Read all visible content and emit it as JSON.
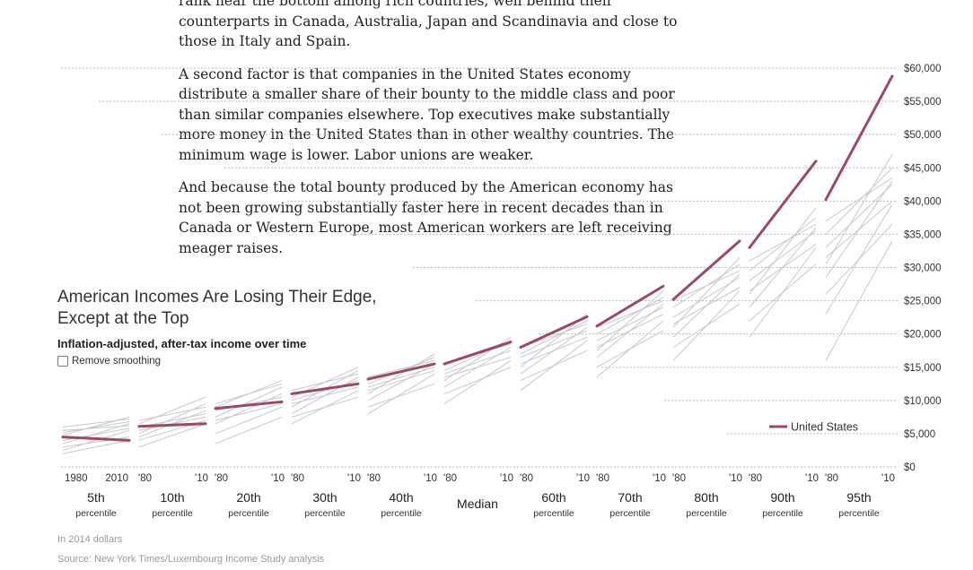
{
  "article": {
    "paragraphs": [
      "rank near the bottom among rich countries, well behind their counterparts in Canada, Australia, Japan and Scandinavia and close to those in Italy and Spain.",
      "A second factor is that companies in the United States economy distribute a smaller share of their bounty to the middle class and poor than similar companies elsewhere. Top executives make substantially more money in the United States than in other wealthy countries. The minimum wage is lower. Labor unions are weaker.",
      "And because the total bounty produced by the American economy has not been growing substantially faster here in recent decades than in Canada or Western Europe, most American workers are left receiving meager raises."
    ]
  },
  "chart": {
    "title_line1": "American Incomes Are Losing Their Edge,",
    "title_line2": "Except at the Top",
    "subtitle": "Inflation-adjusted, after-tax income over time",
    "checkbox_label": "Remove smoothing",
    "footnote_units": "In 2014 dollars",
    "footnote_source": "Source: New York Times/Luxembourg Income Study analysis"
  },
  "chart_data": {
    "type": "line",
    "ylim": [
      0,
      60000
    ],
    "y_ticks": [
      "$0",
      "$5,000",
      "$10,000",
      "$15,000",
      "$20,000",
      "$25,000",
      "$30,000",
      "$35,000",
      "$40,000",
      "$45,000",
      "$50,000",
      "$55,000",
      "$60,000"
    ],
    "legend": "United States",
    "legend_position": "bottom-right",
    "us_color": "#9b4a64",
    "other_color": "#c8c8c8",
    "panels": [
      {
        "name": "5th",
        "sub": "percentile",
        "x_start": "1980",
        "x_end": "2010",
        "us": [
          4500,
          4000
        ],
        "others": [
          [
            3500,
            6500
          ],
          [
            4800,
            7500
          ],
          [
            5200,
            6800
          ],
          [
            2500,
            5500
          ],
          [
            6000,
            7200
          ],
          [
            3000,
            4500
          ],
          [
            5500,
            6200
          ],
          [
            2000,
            4000
          ],
          [
            4000,
            5800
          ]
        ]
      },
      {
        "name": "10th",
        "sub": "percentile",
        "x_start": "'80",
        "x_end": "'10",
        "us": [
          6100,
          6500
        ],
        "others": [
          [
            5000,
            9500
          ],
          [
            6500,
            10500
          ],
          [
            4500,
            8500
          ],
          [
            7000,
            9000
          ],
          [
            3000,
            6500
          ],
          [
            6000,
            8000
          ],
          [
            5500,
            7500
          ],
          [
            4000,
            7000
          ]
        ]
      },
      {
        "name": "20th",
        "sub": "percentile",
        "x_start": "'80",
        "x_end": "'10",
        "us": [
          8800,
          9800
        ],
        "others": [
          [
            7500,
            12000
          ],
          [
            9000,
            13000
          ],
          [
            6500,
            11000
          ],
          [
            8500,
            10500
          ],
          [
            5000,
            9000
          ],
          [
            9500,
            12500
          ],
          [
            7000,
            9500
          ],
          [
            3500,
            7500
          ]
        ]
      },
      {
        "name": "30th",
        "sub": "percentile",
        "x_start": "'80",
        "x_end": "'10",
        "us": [
          11000,
          12500
        ],
        "others": [
          [
            9000,
            14500
          ],
          [
            10500,
            15000
          ],
          [
            8000,
            13500
          ],
          [
            11500,
            14000
          ],
          [
            6500,
            11500
          ],
          [
            10000,
            13000
          ],
          [
            9500,
            12000
          ],
          [
            7500,
            10500
          ]
        ]
      },
      {
        "name": "40th",
        "sub": "percentile",
        "x_start": "'80",
        "x_end": "'10",
        "us": [
          13200,
          15500
        ],
        "others": [
          [
            11000,
            17000
          ],
          [
            12500,
            16500
          ],
          [
            10000,
            15500
          ],
          [
            13500,
            16000
          ],
          [
            8000,
            14000
          ],
          [
            12000,
            15000
          ],
          [
            11500,
            14500
          ],
          [
            9000,
            12500
          ]
        ]
      },
      {
        "name": "Median",
        "sub": "",
        "x_start": "'80",
        "x_end": "'10",
        "us": [
          15500,
          18800
        ],
        "others": [
          [
            13000,
            19500
          ],
          [
            14500,
            19000
          ],
          [
            12000,
            18000
          ],
          [
            15500,
            18500
          ],
          [
            9500,
            16000
          ],
          [
            14000,
            17500
          ],
          [
            13500,
            16500
          ],
          [
            11000,
            15000
          ]
        ]
      },
      {
        "name": "60th",
        "sub": "percentile",
        "x_start": "'80",
        "x_end": "'10",
        "us": [
          18000,
          22600
        ],
        "others": [
          [
            15000,
            23000
          ],
          [
            17000,
            22000
          ],
          [
            14000,
            21000
          ],
          [
            18000,
            21500
          ],
          [
            11500,
            19000
          ],
          [
            16500,
            20500
          ],
          [
            15500,
            19500
          ],
          [
            13000,
            17500
          ]
        ]
      },
      {
        "name": "70th",
        "sub": "percentile",
        "x_start": "'80",
        "x_end": "'10",
        "us": [
          21200,
          27200
        ],
        "others": [
          [
            17500,
            26500
          ],
          [
            20000,
            25500
          ],
          [
            16500,
            24500
          ],
          [
            21000,
            25000
          ],
          [
            13500,
            22000
          ],
          [
            19000,
            24000
          ],
          [
            18000,
            23000
          ],
          [
            15000,
            20500
          ]
        ]
      },
      {
        "name": "80th",
        "sub": "percentile",
        "x_start": "'80",
        "x_end": "'10",
        "us": [
          25200,
          34000
        ],
        "others": [
          [
            21000,
            31500
          ],
          [
            24000,
            30500
          ],
          [
            19500,
            29000
          ],
          [
            25000,
            29500
          ],
          [
            16000,
            26500
          ],
          [
            22500,
            28500
          ],
          [
            21500,
            27000
          ],
          [
            18000,
            24500
          ]
        ]
      },
      {
        "name": "90th",
        "sub": "percentile",
        "x_start": "'80",
        "x_end": "'10",
        "us": [
          33000,
          46000
        ],
        "others": [
          [
            26000,
            39000
          ],
          [
            29500,
            37500
          ],
          [
            24000,
            36000
          ],
          [
            31000,
            36500
          ],
          [
            19500,
            33000
          ],
          [
            28000,
            35500
          ],
          [
            26500,
            33500
          ],
          [
            22000,
            30500
          ]
        ]
      },
      {
        "name": "95th",
        "sub": "percentile",
        "x_start": "'80",
        "x_end": "'10",
        "us": [
          40200,
          58800
        ],
        "others": [
          [
            30500,
            47000
          ],
          [
            35000,
            45000
          ],
          [
            28500,
            43000
          ],
          [
            37000,
            43500
          ],
          [
            23000,
            39500
          ],
          [
            33000,
            42500
          ],
          [
            31500,
            40000
          ],
          [
            26000,
            36500
          ],
          [
            16000,
            34000
          ]
        ]
      }
    ]
  }
}
